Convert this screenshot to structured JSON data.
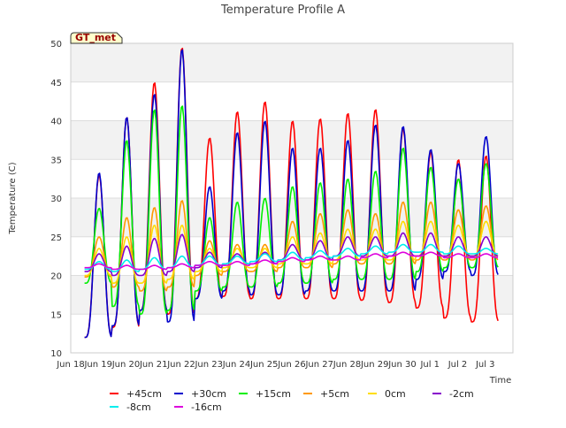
{
  "chart_data": {
    "type": "line",
    "title": "Temperature Profile A",
    "xlabel": "Time",
    "ylabel": "Temperature (C)",
    "badge": "GT_met",
    "ylim": [
      10,
      50
    ],
    "yticks": [
      10,
      15,
      20,
      25,
      30,
      35,
      40,
      45,
      50
    ],
    "xlim": [
      0,
      16
    ],
    "xtick_labels": [
      "Jun 18",
      "Jun 19",
      "Jun 20",
      "Jun 21",
      "Jun 22",
      "Jun 23",
      "Jun 24",
      "Jun 25",
      "Jun 26",
      "Jun 27",
      "Jun 28",
      "Jun 29",
      "Jun 30",
      "Jul 1",
      "Jul 2",
      "Jul 3"
    ],
    "data_start": 0.5,
    "data_end": 15.5,
    "grid": true,
    "legend_position": "bottom",
    "series": [
      {
        "name": "+45cm",
        "color": "#ff0000",
        "daily_min": [
          12.0,
          13.3,
          15.5,
          15.0,
          17.0,
          17.3,
          17.0,
          17.0,
          17.0,
          17.0,
          16.8,
          16.5,
          15.8,
          14.5,
          14.0
        ],
        "daily_max": [
          33.0,
          40.5,
          45.0,
          49.5,
          37.8,
          41.2,
          42.5,
          40.0,
          40.3,
          41.0,
          41.5,
          39.0,
          36.0,
          35.0,
          35.5
        ]
      },
      {
        "name": "+30cm",
        "color": "#0000cc",
        "daily_min": [
          12.0,
          13.5,
          15.5,
          14.0,
          17.0,
          18.0,
          17.5,
          17.5,
          18.0,
          18.0,
          18.0,
          18.0,
          19.5,
          20.5,
          20.0
        ],
        "daily_max": [
          33.3,
          40.5,
          43.5,
          49.3,
          31.5,
          38.5,
          40.0,
          36.5,
          36.5,
          37.5,
          39.5,
          39.3,
          36.3,
          34.5,
          38.0
        ]
      },
      {
        "name": "+15cm",
        "color": "#00ee00",
        "daily_min": [
          19.0,
          16.0,
          15.0,
          15.5,
          18.0,
          18.5,
          18.5,
          19.0,
          19.0,
          19.5,
          19.5,
          19.5,
          20.5,
          21.0,
          21.0
        ],
        "daily_max": [
          28.7,
          37.5,
          41.5,
          42.0,
          27.5,
          29.5,
          30.0,
          31.5,
          32.0,
          32.5,
          33.5,
          36.5,
          34.0,
          32.5,
          34.5
        ]
      },
      {
        "name": "+5cm",
        "color": "#ff9900",
        "daily_min": [
          19.8,
          18.5,
          18.0,
          18.5,
          20.0,
          20.5,
          20.5,
          21.0,
          21.0,
          21.5,
          21.5,
          21.5,
          22.0,
          22.0,
          22.0
        ],
        "daily_max": [
          25.0,
          27.5,
          28.8,
          29.7,
          24.5,
          24.0,
          24.0,
          27.0,
          28.0,
          28.5,
          28.0,
          29.5,
          29.5,
          28.5,
          29.0
        ]
      },
      {
        "name": "0cm",
        "color": "#ffdd00",
        "daily_min": [
          20.0,
          19.0,
          19.0,
          19.5,
          20.5,
          21.0,
          21.0,
          21.5,
          21.5,
          22.0,
          22.0,
          22.0,
          22.5,
          22.5,
          22.5
        ],
        "daily_max": [
          23.5,
          25.0,
          26.5,
          26.5,
          23.5,
          23.5,
          23.5,
          25.0,
          25.5,
          26.0,
          26.0,
          27.0,
          27.0,
          26.5,
          27.0
        ]
      },
      {
        "name": "-2cm",
        "color": "#8800cc",
        "daily_min": [
          20.5,
          20.0,
          20.0,
          20.5,
          21.0,
          21.5,
          21.5,
          22.0,
          22.0,
          22.5,
          22.5,
          22.5,
          22.5,
          22.5,
          22.5
        ],
        "daily_max": [
          22.8,
          23.8,
          24.8,
          25.3,
          23.0,
          22.8,
          23.0,
          24.0,
          24.5,
          25.0,
          25.0,
          25.5,
          25.5,
          25.0,
          25.0
        ]
      },
      {
        "name": "-8cm",
        "color": "#00eeee",
        "daily_min": [
          20.8,
          20.5,
          20.8,
          21.0,
          21.3,
          21.5,
          21.8,
          22.0,
          22.3,
          22.5,
          22.8,
          23.0,
          23.0,
          22.8,
          22.8
        ],
        "daily_max": [
          21.8,
          22.0,
          22.3,
          22.5,
          22.5,
          22.5,
          22.8,
          23.0,
          23.2,
          23.5,
          23.8,
          24.0,
          24.0,
          23.8,
          23.5
        ]
      },
      {
        "name": "-16cm",
        "color": "#dd00dd",
        "daily_min": [
          21.0,
          20.8,
          20.8,
          21.0,
          21.3,
          21.3,
          21.5,
          21.8,
          22.0,
          22.0,
          22.3,
          22.5,
          22.5,
          22.3,
          22.3
        ],
        "daily_max": [
          21.5,
          21.3,
          21.3,
          21.5,
          21.8,
          21.8,
          22.0,
          22.3,
          22.5,
          22.5,
          22.8,
          23.0,
          23.0,
          22.8,
          22.8
        ]
      }
    ]
  }
}
